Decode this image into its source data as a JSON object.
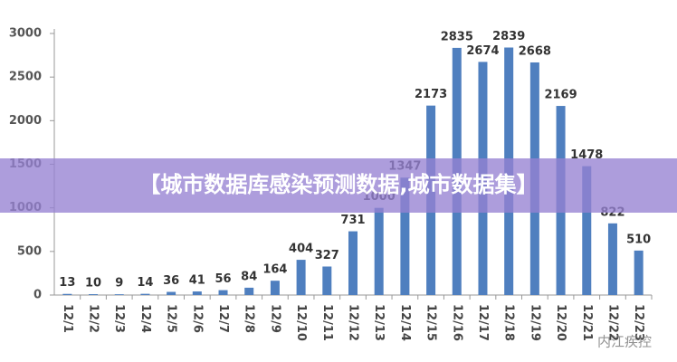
{
  "chart_data": {
    "type": "bar",
    "categories": [
      "12/1",
      "12/2",
      "12/3",
      "12/4",
      "12/5",
      "12/6",
      "12/7",
      "12/8",
      "12/9",
      "12/10",
      "12/11",
      "12/12",
      "12/13",
      "12/14",
      "12/15",
      "12/16",
      "12/17",
      "12/18",
      "12/19",
      "12/20",
      "12/21",
      "12/22",
      "12/23"
    ],
    "values": [
      13,
      10,
      9,
      14,
      36,
      41,
      56,
      84,
      164,
      404,
      327,
      731,
      1000,
      1347,
      2173,
      2835,
      2674,
      2839,
      2668,
      2169,
      1478,
      822,
      510
    ],
    "color": "#4f7fbf",
    "ylim": [
      0,
      3000
    ],
    "yticks": [
      0,
      500,
      1000,
      1500,
      2000,
      2500,
      3000
    ]
  },
  "banner": "【城市数据库感染预测数据,城市数据集】",
  "watermark": "内江疾控"
}
